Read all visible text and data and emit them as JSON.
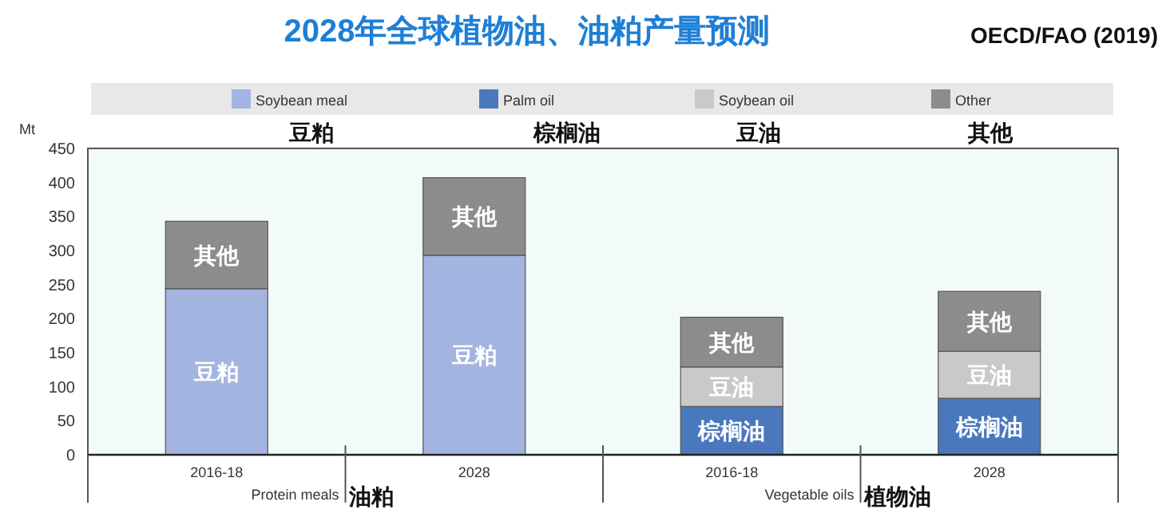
{
  "chart_data": {
    "type": "bar",
    "title": "2028年全球植物油、油粕产量预测",
    "ylabel": "Mt",
    "stacked": true,
    "legend": "top",
    "categories": [
      "2016-18",
      "2028",
      "2016-18",
      "2028"
    ],
    "series": [
      {
        "name": "Soybean meal",
        "color": "#a4b4e0",
        "values": [
          244,
          293,
          null,
          null
        ],
        "value_labels": [
          "豆粕",
          "豆粕",
          null,
          null
        ]
      },
      {
        "name": "Palm oil",
        "color": "#4a78bd",
        "values": [
          null,
          null,
          71,
          83
        ],
        "value_labels": [
          null,
          null,
          "棕榈油",
          "棕榈油"
        ]
      },
      {
        "name": "Soybean oil",
        "color": "#c9c9c9",
        "values": [
          null,
          null,
          58,
          69
        ],
        "value_labels": [
          null,
          null,
          "豆油",
          "豆油"
        ]
      },
      {
        "name": "Other",
        "color": "#8c8c8c",
        "values": [
          99,
          114,
          73,
          88
        ],
        "value_labels": [
          "其他",
          "其他",
          "其他",
          "其他"
        ]
      }
    ],
    "ylim": [
      0,
      450
    ],
    "yticks": [
      0,
      50,
      100,
      150,
      200,
      250,
      300,
      350,
      400,
      450
    ],
    "annotations": [
      "OECD/FAO (2019)",
      "豆粕",
      "棕榈油",
      "豆油",
      "其他",
      "Protein meals",
      "油粕",
      "Vegetable oils",
      "植物油"
    ]
  }
}
